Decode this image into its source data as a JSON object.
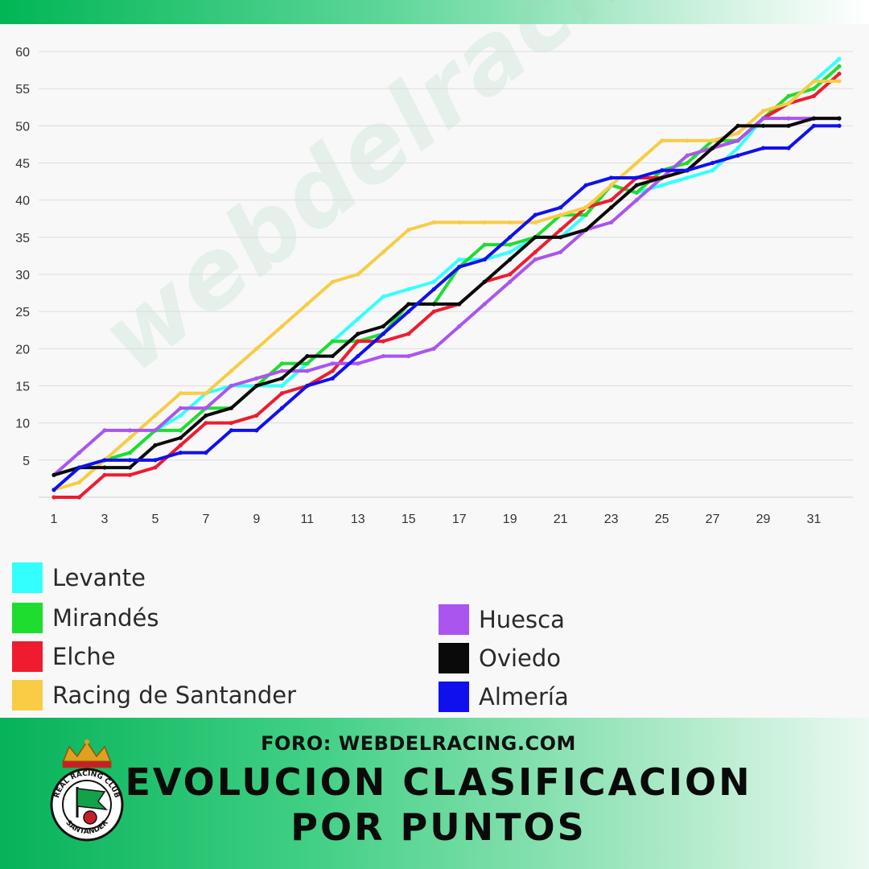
{
  "watermark": "webdelracing.com",
  "footer": {
    "forum": "FORO: WEBDELRACING.COM",
    "title_line1": "EVOLUCION CLASIFICACION",
    "title_line2": "POR PUNTOS",
    "crest_text_top": "REAL RACING CLUB",
    "crest_text_bottom": "SANTANDER"
  },
  "chart_data": {
    "type": "line",
    "title": "EVOLUCION CLASIFICACION POR PUNTOS",
    "xlabel": "",
    "ylabel": "",
    "x": [
      1,
      2,
      3,
      4,
      5,
      6,
      7,
      8,
      9,
      10,
      11,
      12,
      13,
      14,
      15,
      16,
      17,
      18,
      19,
      20,
      21,
      22,
      23,
      24,
      25,
      26,
      27,
      28,
      29,
      30,
      31,
      32
    ],
    "x_ticks": [
      1,
      3,
      5,
      7,
      9,
      11,
      13,
      15,
      17,
      19,
      21,
      23,
      25,
      27,
      29,
      31
    ],
    "y_ticks": [
      5,
      10,
      15,
      20,
      25,
      30,
      35,
      40,
      45,
      50,
      55,
      60
    ],
    "xlim": [
      1,
      32
    ],
    "ylim": [
      0,
      60
    ],
    "grid": "horizontal",
    "legend_placement": "bottom",
    "series": [
      {
        "name": "Levante",
        "color": "#33ffff",
        "values": [
          1,
          4,
          5,
          6,
          9,
          11,
          14,
          15,
          15,
          15,
          18,
          21,
          24,
          27,
          28,
          29,
          32,
          32,
          33,
          35,
          35,
          38,
          42,
          41,
          42,
          43,
          44,
          47,
          51,
          53,
          56,
          59
        ]
      },
      {
        "name": "Mirandés",
        "color": "#1edd2e",
        "values": [
          3,
          4,
          5,
          6,
          9,
          9,
          12,
          12,
          15,
          18,
          18,
          21,
          21,
          22,
          26,
          26,
          31,
          34,
          34,
          35,
          38,
          38,
          42,
          41,
          44,
          45,
          48,
          48,
          51,
          54,
          55,
          58
        ]
      },
      {
        "name": "Elche",
        "color": "#ee1c2e",
        "values": [
          0,
          0,
          3,
          3,
          4,
          7,
          10,
          10,
          11,
          14,
          15,
          17,
          21,
          21,
          22,
          25,
          26,
          29,
          30,
          33,
          36,
          39,
          40,
          43,
          43,
          44,
          47,
          48,
          51,
          53,
          54,
          57
        ]
      },
      {
        "name": "Racing de Santander",
        "color": "#f8cc45",
        "values": [
          1,
          2,
          5,
          8,
          11,
          14,
          14,
          17,
          20,
          23,
          26,
          29,
          30,
          33,
          36,
          37,
          37,
          37,
          37,
          37,
          38,
          39,
          42,
          45,
          48,
          48,
          48,
          49,
          52,
          53,
          56,
          56
        ]
      },
      {
        "name": "Huesca",
        "color": "#aa55ee",
        "values": [
          3,
          6,
          9,
          9,
          9,
          12,
          12,
          15,
          16,
          17,
          17,
          18,
          18,
          19,
          19,
          20,
          23,
          26,
          29,
          32,
          33,
          36,
          37,
          40,
          43,
          46,
          47,
          48,
          51,
          51,
          51,
          51
        ]
      },
      {
        "name": "Oviedo",
        "color": "#0a0a0a",
        "values": [
          3,
          4,
          4,
          4,
          7,
          8,
          11,
          12,
          15,
          16,
          19,
          19,
          22,
          23,
          26,
          26,
          26,
          29,
          32,
          35,
          35,
          36,
          39,
          42,
          43,
          44,
          47,
          50,
          50,
          50,
          51,
          51
        ]
      },
      {
        "name": "Almería",
        "color": "#1010ee",
        "values": [
          1,
          4,
          5,
          5,
          5,
          6,
          6,
          9,
          9,
          12,
          15,
          16,
          19,
          22,
          25,
          28,
          31,
          32,
          35,
          38,
          39,
          42,
          43,
          43,
          44,
          44,
          45,
          46,
          47,
          47,
          50,
          50
        ]
      }
    ]
  }
}
